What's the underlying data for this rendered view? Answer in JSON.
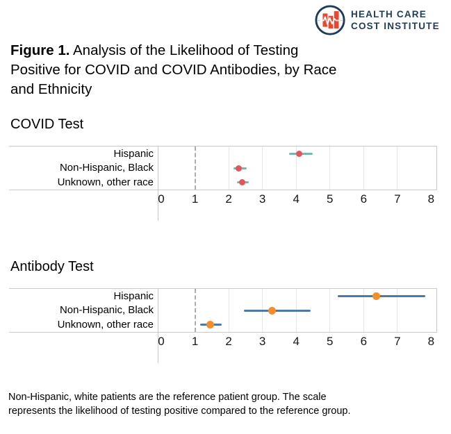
{
  "header": {
    "logo": {
      "text_line1": "HEALTH CARE",
      "text_line2": "COST INSTITUTE",
      "navy": "#1e3c59",
      "red": "#e6492f",
      "icon": "hcci-circle-bars-ekg"
    }
  },
  "figure_title": {
    "line1_bold": "Figure 1.",
    "line1_rest": " Analysis of the Likelihood of Testing",
    "line2": "Positive for COVID and COVID Antibodies, by Race",
    "line3": "and Ethnicity"
  },
  "chart_data": [
    {
      "type": "scatter",
      "subtype": "forest-dot-interval",
      "title": "COVID Test",
      "categories": [
        "Hispanic",
        "Non-Hispanic, Black",
        "Unknown, other race"
      ],
      "series": [
        {
          "name": "likelihood of testing positive vs reference",
          "values": [
            4.1,
            2.3,
            2.4
          ],
          "ci_low": [
            3.8,
            2.15,
            2.25
          ],
          "ci_high": [
            4.5,
            2.55,
            2.6
          ]
        }
      ],
      "xlim": [
        0,
        8
      ],
      "xticks": [
        0,
        1,
        2,
        3,
        4,
        5,
        6,
        7,
        8
      ],
      "reference_line": 1,
      "point_color": "#e15759",
      "ci_color": "#76b7b2",
      "grid": true,
      "legend": "none"
    },
    {
      "type": "scatter",
      "subtype": "forest-dot-interval",
      "title": "Antibody Test",
      "categories": [
        "Hispanic",
        "Non-Hispanic, Black",
        "Unknown, other race"
      ],
      "series": [
        {
          "name": "likelihood of testing positive vs reference",
          "values": [
            6.4,
            3.3,
            1.45
          ],
          "ci_low": [
            5.25,
            2.45,
            1.15
          ],
          "ci_high": [
            7.85,
            4.45,
            1.8
          ]
        }
      ],
      "xlim": [
        0,
        8
      ],
      "xticks": [
        0,
        1,
        2,
        3,
        4,
        5,
        6,
        7,
        8
      ],
      "reference_line": 1,
      "point_color": "#f28e2b",
      "ci_color": "#4e79a7",
      "grid": true,
      "legend": "none"
    }
  ],
  "caption": {
    "line1": "Non-Hispanic, white patients are the reference patient group. The scale",
    "line2": "represents the likelihood of testing positive compared to the reference group."
  }
}
